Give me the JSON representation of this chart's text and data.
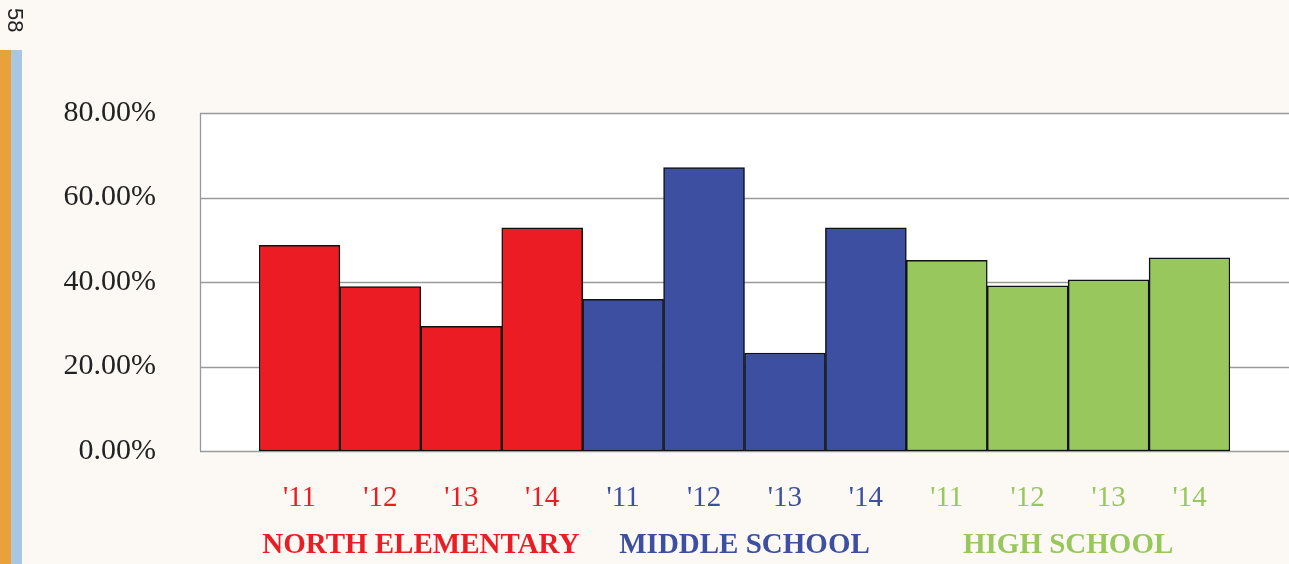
{
  "chart_data": {
    "type": "bar",
    "stacked": true,
    "categories": [
      "'11",
      "'12",
      "'13",
      "'14",
      "'11",
      "'12",
      "'13",
      "'14",
      "'11",
      "'12",
      "'13",
      "'14"
    ],
    "series": [
      {
        "name": "NORTH ELEMENTARY",
        "color": "#ec1c24",
        "values": [
          48.7,
          38.9,
          29.5,
          52.8,
          null,
          null,
          null,
          null,
          null,
          null,
          null,
          null
        ]
      },
      {
        "name": "MIDDLE SCHOOL",
        "color": "#3c4fa0",
        "values": [
          null,
          null,
          null,
          null,
          35.9,
          67.1,
          23.2,
          52.8,
          null,
          null,
          null,
          null
        ]
      },
      {
        "name": "HIGH SCHOOL",
        "color": "#97c75d",
        "values": [
          null,
          null,
          null,
          null,
          null,
          null,
          null,
          null,
          45.1,
          39.1,
          40.5,
          45.7
        ]
      }
    ],
    "ylim": [
      0,
      80
    ],
    "yticks": [
      {
        "value": 0,
        "label": "0.00%"
      },
      {
        "value": 20,
        "label": "20.00%"
      },
      {
        "value": 40,
        "label": "40.00%"
      },
      {
        "value": 60,
        "label": "60.00%"
      },
      {
        "value": 80,
        "label": "80.00%"
      }
    ],
    "grid": "y",
    "legend": false,
    "annotations": [
      "58"
    ]
  }
}
